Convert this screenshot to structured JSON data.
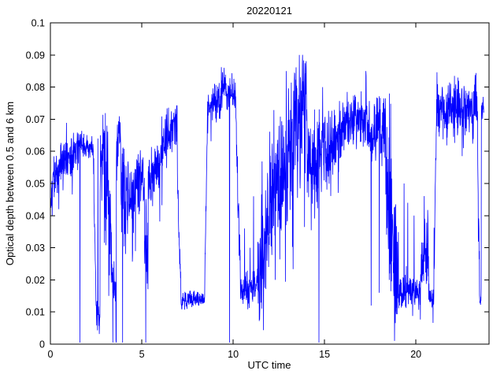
{
  "figure": {
    "background": "#ffffff"
  },
  "chart_data": {
    "type": "line",
    "title": "20220121",
    "xlabel": "UTC time",
    "ylabel": "Optical depth between 0.5 and 6 km",
    "xlim": [
      0,
      24
    ],
    "ylim": [
      0,
      0.1
    ],
    "xticks": [
      0,
      5,
      10,
      15,
      20
    ],
    "xtick_labels": [
      "0",
      "5",
      "10",
      "15",
      "20"
    ],
    "yticks": [
      0,
      0.01,
      0.02,
      0.03,
      0.04,
      0.05,
      0.06,
      0.07,
      0.08,
      0.09,
      0.1
    ],
    "ytick_labels": [
      "0",
      "0.01",
      "0.02",
      "0.03",
      "0.04",
      "0.05",
      "0.06",
      "0.07",
      "0.08",
      "0.09",
      "0.1"
    ],
    "grid": false,
    "box": true,
    "legend": "none",
    "segments_format": "[x_start_hour, x_end_hour, mean_y_start, mean_y_end, noise_amplitude]",
    "series": [
      {
        "name": "optical-depth-0.5-6km",
        "color": "#0000ff",
        "segments": [
          [
            0.0,
            0.25,
            0.046,
            0.053,
            0.01
          ],
          [
            0.25,
            0.8,
            0.054,
            0.058,
            0.009
          ],
          [
            0.8,
            1.55,
            0.057,
            0.061,
            0.008
          ],
          [
            1.55,
            2.35,
            0.062,
            0.062,
            0.005
          ],
          [
            2.35,
            2.5,
            0.06,
            0.012,
            0.008
          ],
          [
            2.5,
            2.72,
            0.01,
            0.008,
            0.006
          ],
          [
            2.72,
            2.95,
            0.055,
            0.063,
            0.012
          ],
          [
            2.95,
            3.35,
            0.05,
            0.032,
            0.028
          ],
          [
            3.35,
            3.6,
            0.02,
            0.018,
            0.012
          ],
          [
            3.6,
            3.85,
            0.058,
            0.064,
            0.012
          ],
          [
            3.85,
            4.15,
            0.058,
            0.042,
            0.022
          ],
          [
            4.15,
            4.7,
            0.046,
            0.05,
            0.014
          ],
          [
            4.7,
            5.15,
            0.05,
            0.052,
            0.012
          ],
          [
            5.15,
            5.35,
            0.04,
            0.032,
            0.02
          ],
          [
            5.35,
            5.95,
            0.05,
            0.056,
            0.012
          ],
          [
            5.95,
            6.55,
            0.058,
            0.066,
            0.012
          ],
          [
            6.55,
            6.95,
            0.066,
            0.068,
            0.009
          ],
          [
            6.95,
            7.15,
            0.05,
            0.015,
            0.006
          ],
          [
            7.15,
            8.45,
            0.0135,
            0.014,
            0.0035
          ],
          [
            8.45,
            8.6,
            0.02,
            0.072,
            0.006
          ],
          [
            8.6,
            9.3,
            0.074,
            0.076,
            0.007
          ],
          [
            9.3,
            9.6,
            0.079,
            0.082,
            0.008
          ],
          [
            9.6,
            9.78,
            0.077,
            0.074,
            0.007
          ],
          [
            9.78,
            10.15,
            0.078,
            0.079,
            0.007
          ],
          [
            10.15,
            10.4,
            0.07,
            0.02,
            0.01
          ],
          [
            10.4,
            11.35,
            0.016,
            0.018,
            0.007
          ],
          [
            11.35,
            11.95,
            0.022,
            0.038,
            0.024
          ],
          [
            11.95,
            12.55,
            0.04,
            0.054,
            0.03
          ],
          [
            12.55,
            13.3,
            0.052,
            0.06,
            0.03
          ],
          [
            13.3,
            14.05,
            0.068,
            0.073,
            0.026
          ],
          [
            14.05,
            14.65,
            0.058,
            0.055,
            0.02
          ],
          [
            14.65,
            15.05,
            0.06,
            0.068,
            0.02
          ],
          [
            15.05,
            15.65,
            0.058,
            0.062,
            0.015
          ],
          [
            15.65,
            16.35,
            0.064,
            0.069,
            0.012
          ],
          [
            16.35,
            17.35,
            0.07,
            0.071,
            0.01
          ],
          [
            17.35,
            17.65,
            0.068,
            0.064,
            0.012
          ],
          [
            17.65,
            18.35,
            0.067,
            0.069,
            0.013
          ],
          [
            18.35,
            19.05,
            0.045,
            0.022,
            0.03
          ],
          [
            19.05,
            20.2,
            0.016,
            0.016,
            0.006
          ],
          [
            20.2,
            20.7,
            0.022,
            0.03,
            0.014
          ],
          [
            20.7,
            20.98,
            0.015,
            0.015,
            0.005
          ],
          [
            20.98,
            21.12,
            0.02,
            0.07,
            0.008
          ],
          [
            21.12,
            23.35,
            0.073,
            0.075,
            0.012
          ],
          [
            23.35,
            23.48,
            0.074,
            0.02,
            0.01
          ],
          [
            23.48,
            23.58,
            0.014,
            0.015,
            0.004
          ],
          [
            23.58,
            23.72,
            0.072,
            0.077,
            0.008
          ]
        ],
        "spikes": [
          [
            2.6,
            0.064
          ],
          [
            3.1,
            0.068
          ],
          [
            3.2,
            0.015
          ],
          [
            6.75,
            0.072
          ],
          [
            9.5,
            0.086
          ],
          [
            10.62,
            0.036
          ],
          [
            10.92,
            0.03
          ],
          [
            11.12,
            0.046
          ],
          [
            12.3,
            0.02
          ],
          [
            12.9,
            0.085
          ],
          [
            13.62,
            0.09
          ],
          [
            13.78,
            0.087
          ],
          [
            14.9,
            0.08
          ],
          [
            17.55,
            0.012
          ],
          [
            18.0,
            0.016
          ],
          [
            18.55,
            0.078
          ],
          [
            18.8,
            0.015
          ],
          [
            19.35,
            0.05
          ],
          [
            19.55,
            0.044
          ],
          [
            19.9,
            0.04
          ],
          [
            21.9,
            0.081
          ],
          [
            22.6,
            0.061
          ]
        ],
        "zero_drops": [
          1.62,
          3.42,
          3.6,
          3.95,
          5.22,
          9.8,
          14.7
        ]
      }
    ]
  }
}
